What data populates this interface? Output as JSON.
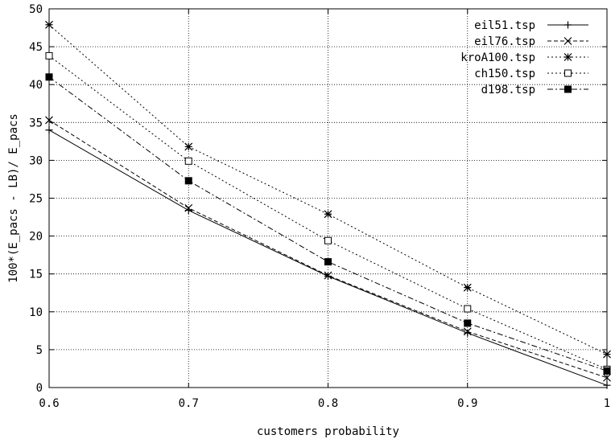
{
  "chart_data": {
    "type": "line",
    "xlabel": "customers probability",
    "ylabel": "100*(E_pacs - LB)/ E_pacs",
    "xlim": [
      0.6,
      1.0
    ],
    "ylim": [
      0,
      50
    ],
    "x_ticks": [
      0.6,
      0.7,
      0.8,
      0.9,
      1.0
    ],
    "x_tick_labels": [
      "0.6",
      "0.7",
      "0.8",
      "0.9",
      "1"
    ],
    "y_ticks": [
      0,
      5,
      10,
      15,
      20,
      25,
      30,
      35,
      40,
      45,
      50
    ],
    "y_tick_labels": [
      "0",
      "5",
      "10",
      "15",
      "20",
      "25",
      "30",
      "35",
      "40",
      "45",
      "50"
    ],
    "grid": true,
    "legend_position": "top-right",
    "x": [
      0.6,
      0.7,
      0.8,
      0.9,
      1.0
    ],
    "series": [
      {
        "name": "eil51.tsp",
        "values": [
          34.0,
          23.4,
          14.7,
          7.2,
          0.3
        ],
        "dash": "solid",
        "marker": "plus"
      },
      {
        "name": "eil76.tsp",
        "values": [
          35.3,
          23.7,
          14.8,
          7.4,
          1.3
        ],
        "dash": "dashed",
        "marker": "cross"
      },
      {
        "name": "kroA100.tsp",
        "values": [
          47.9,
          31.8,
          22.9,
          13.2,
          4.4
        ],
        "dash": "dotted",
        "marker": "star"
      },
      {
        "name": "ch150.tsp",
        "values": [
          43.8,
          29.9,
          19.4,
          10.4,
          2.4
        ],
        "dash": "dotted",
        "marker": "open-square"
      },
      {
        "name": "d198.tsp",
        "values": [
          41.0,
          27.3,
          16.6,
          8.5,
          2.2
        ],
        "dash": "dashdot",
        "marker": "filled-square"
      }
    ]
  }
}
